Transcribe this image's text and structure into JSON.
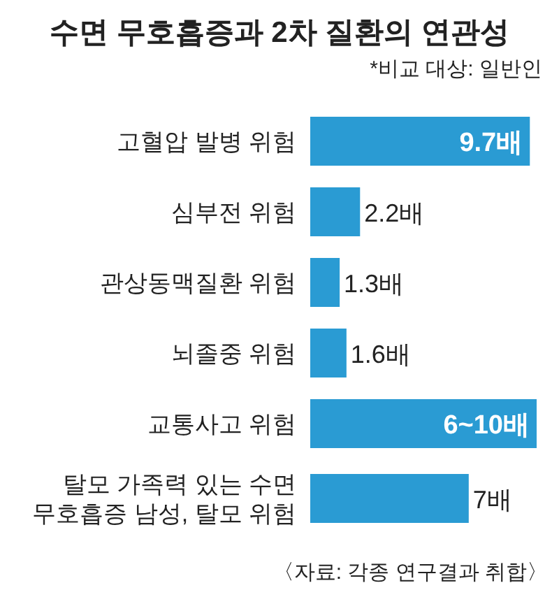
{
  "chart_data": {
    "type": "bar",
    "orientation": "horizontal",
    "title": "수면 무호흡증과 2차 질환의 연관성",
    "subtitle": "*비교 대상: 일반인",
    "categories": [
      "고혈압 발병 위험",
      "심부전 위험",
      "관상동맥질환 위험",
      "뇌졸중 위험",
      "교통사고 위험",
      "탈모 가족력 있는 수면\n무호흡증 남성, 탈모 위험"
    ],
    "values": [
      9.7,
      2.2,
      1.3,
      1.6,
      10,
      7
    ],
    "value_labels": [
      "9.7배",
      "2.2배",
      "1.3배",
      "1.6배",
      "6~10배",
      "7배"
    ],
    "color": "#2a9bd3",
    "annotations": [
      "〈자료: 각종 연구결과 취합〉"
    ]
  }
}
